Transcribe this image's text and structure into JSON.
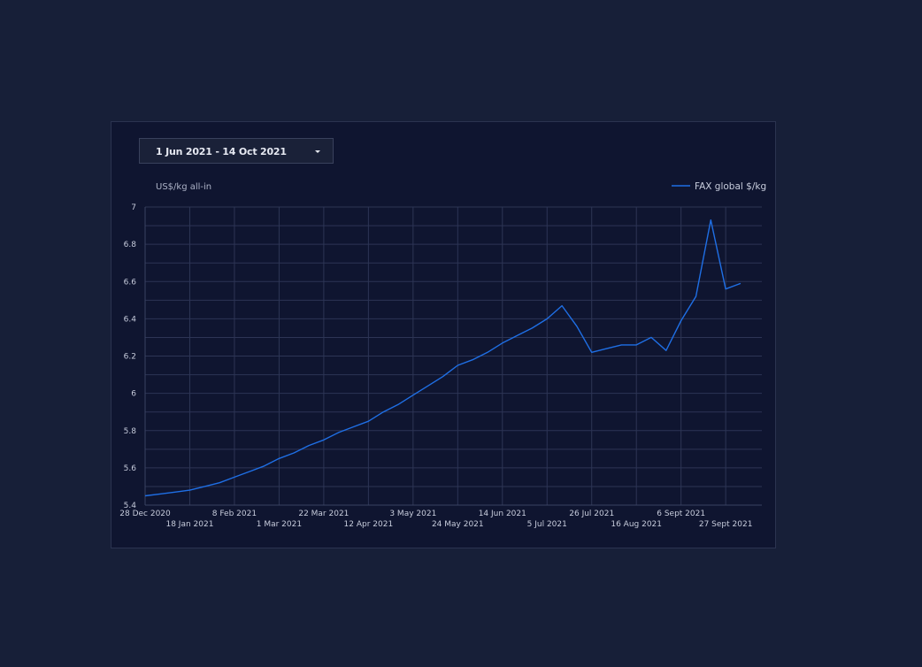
{
  "date_range": {
    "label": "1 Jun 2021 - 14 Oct 2021",
    "icon": "caret-down-icon"
  },
  "colors": {
    "background": "#171f38",
    "card": "#0f1530",
    "grid": "#2d3555",
    "series_line": "#1f6fe5",
    "text": "#c7ccdc"
  },
  "chart_data": {
    "type": "line",
    "ylabel": "US$/kg all-in",
    "ylim": [
      5.4,
      7
    ],
    "yticks": [
      "5.4",
      "5.6",
      "5.8",
      "6",
      "6.2",
      "6.4",
      "6.6",
      "6.8",
      "7"
    ],
    "grid": true,
    "legend_position": "top-right",
    "xtick_labels_top": [
      "28 Dec 2020",
      "8 Feb 2021",
      "22 Mar 2021",
      "3 May 2021",
      "14 Jun 2021",
      "26 Jul 2021",
      "6 Sept 2021"
    ],
    "xtick_labels_bottom": [
      "18 Jan 2021",
      "1 Mar 2021",
      "12 Apr 2021",
      "24 May 2021",
      "5 Jul 2021",
      "16 Aug 2021",
      "27 Sept 2021"
    ],
    "x": [
      "2020-12-28",
      "2021-01-04",
      "2021-01-11",
      "2021-01-18",
      "2021-01-25",
      "2021-02-01",
      "2021-02-08",
      "2021-02-15",
      "2021-02-22",
      "2021-03-01",
      "2021-03-08",
      "2021-03-15",
      "2021-03-22",
      "2021-03-29",
      "2021-04-05",
      "2021-04-12",
      "2021-04-19",
      "2021-04-26",
      "2021-05-03",
      "2021-05-10",
      "2021-05-17",
      "2021-05-24",
      "2021-05-31",
      "2021-06-07",
      "2021-06-14",
      "2021-06-21",
      "2021-06-28",
      "2021-07-05",
      "2021-07-12",
      "2021-07-19",
      "2021-07-26",
      "2021-08-02",
      "2021-08-09",
      "2021-08-16",
      "2021-08-23",
      "2021-08-30",
      "2021-09-06",
      "2021-09-13",
      "2021-09-20",
      "2021-09-27",
      "2021-10-04"
    ],
    "series": [
      {
        "name": "FAX global $/kg",
        "color": "#1f6fe5",
        "values": [
          5.45,
          5.46,
          5.47,
          5.48,
          5.5,
          5.52,
          5.55,
          5.58,
          5.61,
          5.65,
          5.68,
          5.72,
          5.75,
          5.79,
          5.82,
          5.85,
          5.9,
          5.94,
          5.99,
          6.04,
          6.09,
          6.15,
          6.18,
          6.22,
          6.27,
          6.31,
          6.35,
          6.4,
          6.47,
          6.36,
          6.22,
          6.24,
          6.26,
          6.26,
          6.3,
          6.23,
          6.39,
          6.52,
          6.93,
          6.56,
          6.59
        ]
      }
    ]
  }
}
